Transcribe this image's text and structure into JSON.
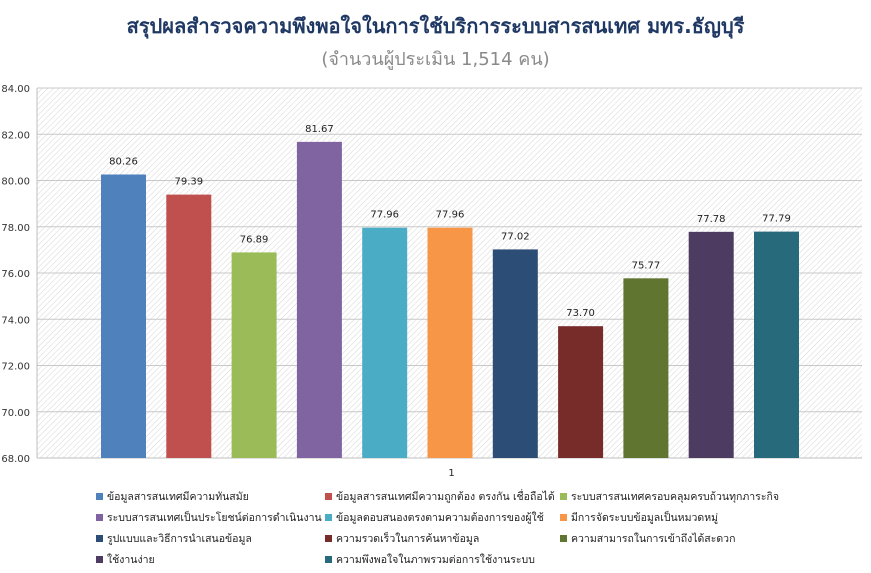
{
  "chart_data": {
    "type": "bar",
    "title": "สรุปผลสำรวจความพึงพอใจในการใช้บริการระบบสารสนเทศ มทร.ธัญบุรี",
    "subtitle": "(จำนวนผู้ประเมิน 1,514 คน)",
    "categories": [
      "1"
    ],
    "ylim": [
      68,
      84
    ],
    "yticks": [
      "68.00",
      "70.00",
      "72.00",
      "74.00",
      "76.00",
      "78.00",
      "80.00",
      "82.00",
      "84.00"
    ],
    "grid": true,
    "legend_position": "bottom",
    "series": [
      {
        "name": "ข้อมูลสารสนเทศมีความทันสมัย",
        "value": 80.26,
        "label": "80.26",
        "color": "#4f81bd"
      },
      {
        "name": "ข้อมูลสารสนเทศมีความถูกต้อง ตรงกัน เชื่อถือได้",
        "value": 79.39,
        "label": "79.39",
        "color": "#c0504d"
      },
      {
        "name": "ระบบสารสนเทศครอบคลุมครบถ้วนทุกภาระกิจ",
        "value": 76.89,
        "label": "76.89",
        "color": "#9bbb59"
      },
      {
        "name": "ระบบสารสนเทศเป็นประโยชน์ต่อการดำเนินงาน",
        "value": 81.67,
        "label": "81.67",
        "color": "#8064a2"
      },
      {
        "name": "ข้อมูลตอบสนองตรงตามความต้องการของผู้ใช้",
        "value": 77.96,
        "label": "77.96",
        "color": "#4bacc6"
      },
      {
        "name": "มีการจัดระบบข้อมูลเป็นหมวดหมู่",
        "value": 77.96,
        "label": "77.96",
        "color": "#f79646"
      },
      {
        "name": "รูปแบบและวิธีการนำเสนอข้อมูล",
        "value": 77.02,
        "label": "77.02",
        "color": "#2c4d75"
      },
      {
        "name": "ความรวดเร็วในการค้นหาข้อมูล",
        "value": 73.7,
        "label": "73.70",
        "color": "#772c2a"
      },
      {
        "name": "ความสามารถในการเข้าถึงได้สะดวก",
        "value": 75.77,
        "label": "75.77",
        "color": "#5f7530"
      },
      {
        "name": "ใช้งานง่าย",
        "value": 77.78,
        "label": "77.78",
        "color": "#4d3b62"
      },
      {
        "name": "ความพึงพอใจในภาพรวมต่อการใช้งานระบบ",
        "value": 77.79,
        "label": "77.79",
        "color": "#276a7c"
      }
    ]
  }
}
